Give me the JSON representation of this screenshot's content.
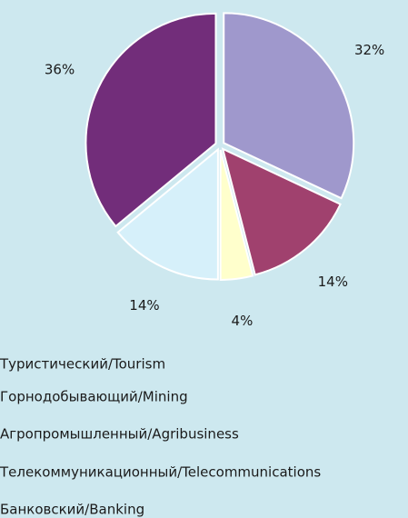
{
  "chart_data": {
    "type": "pie",
    "categories": [
      "Туристический/Tourism",
      "Горнодобывающий/Mining",
      "Агропромышленный/Agribusiness",
      "Телекоммуникационный/Telecommunications",
      "Банковский/Banking"
    ],
    "values": [
      32,
      14,
      4,
      14,
      36
    ],
    "value_labels": [
      "32%",
      "14%",
      "4%",
      "14%",
      "36%"
    ],
    "colors": [
      "#9f98cc",
      "#a0416e",
      "#ffffcc",
      "#d6f0fa",
      "#722d7a"
    ]
  }
}
